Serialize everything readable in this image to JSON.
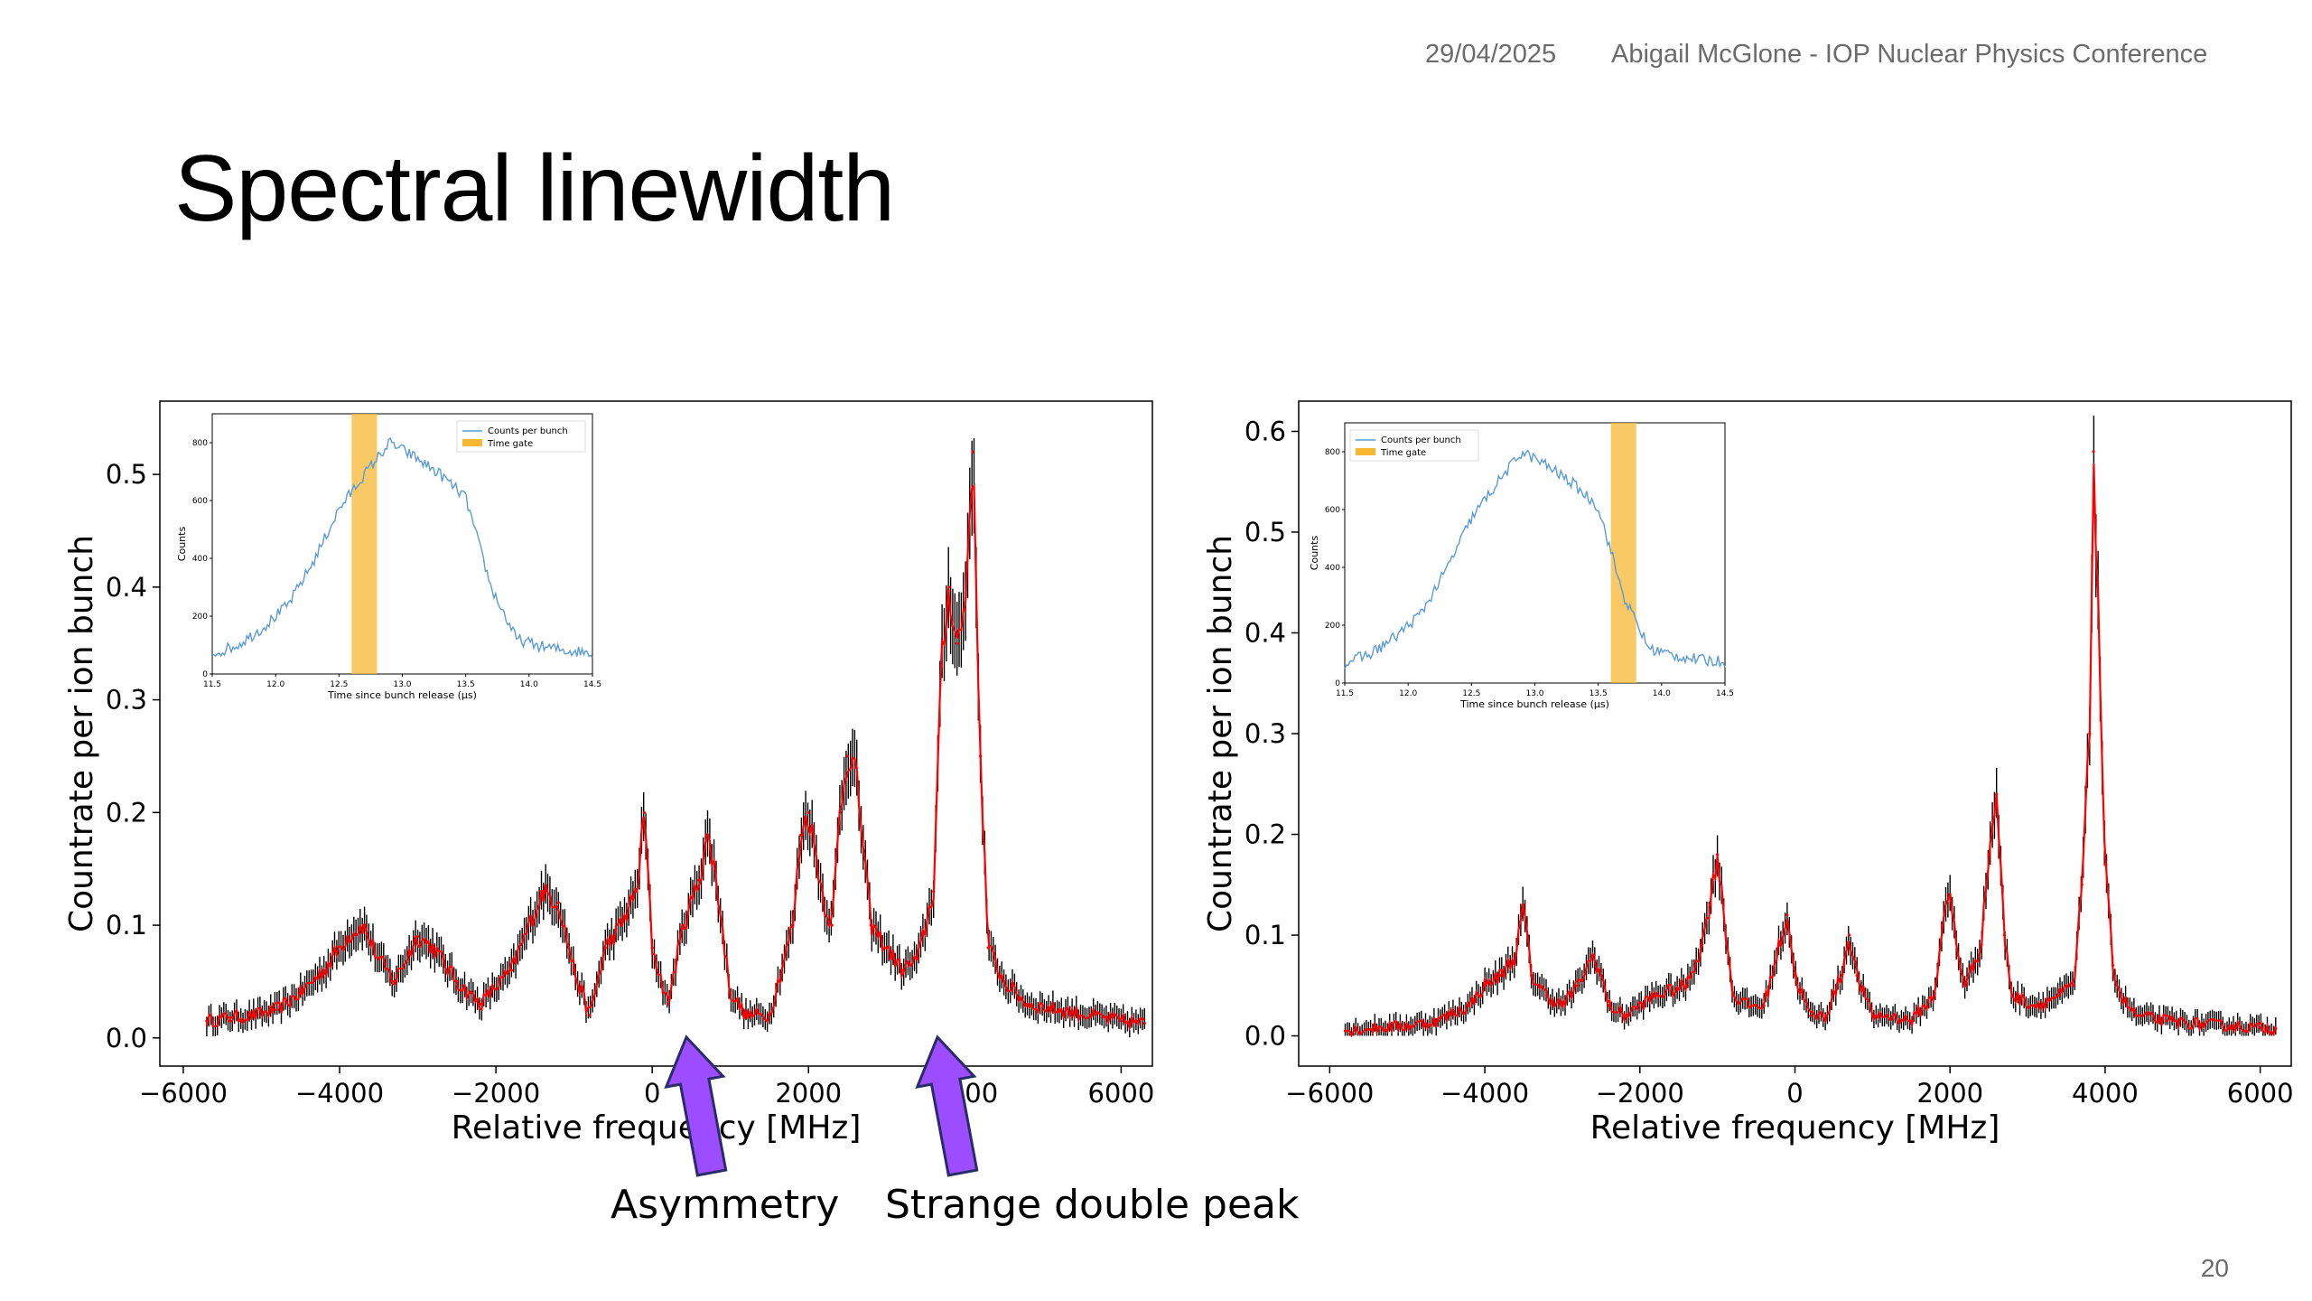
{
  "header": {
    "date": "29/04/2025",
    "author_event": "Abigail McGlone - IOP Nuclear Physics Conference"
  },
  "slide": {
    "title": "Spectral linewidth",
    "page_number": "20"
  },
  "annotations": {
    "asymmetry": "Asymmetry",
    "double_peak": "Strange double peak"
  },
  "colors": {
    "data_line": "#ff0000",
    "error_bars": "#000000",
    "inset_line": "#5b9bd5",
    "time_gate": "#f7b731",
    "arrow": "#9b4dff"
  },
  "chart_data": [
    {
      "type": "line",
      "xlabel": "Relative frequency [MHz]",
      "ylabel": "Countrate per ion bunch",
      "xlim": [
        -6300,
        6400
      ],
      "ylim": [
        -0.025,
        0.565
      ],
      "xticks": [
        -6000,
        -4000,
        -2000,
        0,
        2000,
        4000,
        6000
      ],
      "xtick_labels": [
        "−6000",
        "−4000",
        "−2000",
        "0",
        "2000",
        "4000",
        "6000"
      ],
      "yticks": [
        0.0,
        0.1,
        0.2,
        0.3,
        0.4,
        0.5
      ],
      "ytick_labels": [
        "0.0",
        "0.1",
        "0.2",
        "0.3",
        "0.4",
        "0.5"
      ],
      "series": [
        {
          "x": [
            -5700,
            -5400,
            -5100,
            -4800,
            -4500,
            -4200,
            -3900,
            -3700,
            -3500,
            -3300,
            -3000,
            -2800,
            -2500,
            -2200,
            -1800,
            -1400,
            -1200,
            -1000,
            -800,
            -600,
            -400,
            -200,
            -100,
            0,
            200,
            400,
            600,
            700,
            800,
            1000,
            1200,
            1500,
            1800,
            1900,
            2000,
            2200,
            2300,
            2400,
            2500,
            2600,
            2800,
            3000,
            3200,
            3400,
            3600,
            3700,
            3800,
            3900,
            4000,
            4100,
            4200,
            4300,
            4500,
            4800,
            5200,
            5600,
            6000,
            6300
          ],
          "y": [
            0.015,
            0.018,
            0.02,
            0.025,
            0.04,
            0.06,
            0.09,
            0.1,
            0.07,
            0.05,
            0.09,
            0.08,
            0.05,
            0.03,
            0.06,
            0.13,
            0.12,
            0.06,
            0.02,
            0.08,
            0.1,
            0.13,
            0.2,
            0.08,
            0.03,
            0.1,
            0.14,
            0.18,
            0.15,
            0.04,
            0.02,
            0.02,
            0.1,
            0.18,
            0.2,
            0.12,
            0.1,
            0.2,
            0.25,
            0.24,
            0.1,
            0.08,
            0.06,
            0.07,
            0.13,
            0.33,
            0.4,
            0.35,
            0.38,
            0.52,
            0.25,
            0.08,
            0.05,
            0.03,
            0.025,
            0.02,
            0.015,
            0.013
          ]
        }
      ],
      "inset": {
        "xlabel": "Time since bunch release (μs)",
        "ylabel": "Counts",
        "xticks": [
          11.5,
          12.0,
          12.5,
          13.0,
          13.5,
          14.0,
          14.5
        ],
        "xtick_labels": [
          "11.5",
          "12.0",
          "12.5",
          "13.0",
          "13.5",
          "14.0",
          "14.5"
        ],
        "yticks": [
          0,
          200,
          400,
          600,
          800
        ],
        "ytick_labels": [
          "0",
          "200",
          "400",
          "600",
          "800"
        ],
        "xlim": [
          11.5,
          14.5
        ],
        "ylim": [
          0,
          900
        ],
        "legend": [
          "Counts per bunch",
          "Time gate"
        ],
        "gate": [
          12.6,
          12.8
        ],
        "x": [
          11.5,
          11.7,
          11.9,
          12.1,
          12.3,
          12.5,
          12.7,
          12.9,
          13.1,
          13.3,
          13.5,
          13.7,
          13.9,
          14.1,
          14.3,
          14.5
        ],
        "y": [
          70,
          100,
          160,
          240,
          390,
          570,
          690,
          800,
          750,
          690,
          610,
          300,
          120,
          95,
          80,
          75
        ]
      }
    },
    {
      "type": "line",
      "xlabel": "Relative frequency [MHz]",
      "ylabel": "Countrate per ion bunch",
      "xlim": [
        -6400,
        6400
      ],
      "ylim": [
        -0.03,
        0.63
      ],
      "xticks": [
        -6000,
        -4000,
        -2000,
        0,
        2000,
        4000,
        6000
      ],
      "xtick_labels": [
        "−6000",
        "−4000",
        "−2000",
        "0",
        "2000",
        "4000",
        "6000"
      ],
      "yticks": [
        0.0,
        0.1,
        0.2,
        0.3,
        0.4,
        0.5,
        0.6
      ],
      "ytick_labels": [
        "0.0",
        "0.1",
        "0.2",
        "0.3",
        "0.4",
        "0.5",
        "0.6"
      ],
      "series": [
        {
          "x": [
            -5800,
            -5400,
            -5000,
            -4600,
            -4200,
            -4000,
            -3800,
            -3600,
            -3500,
            -3400,
            -3200,
            -3000,
            -2800,
            -2600,
            -2500,
            -2400,
            -2200,
            -1800,
            -1400,
            -1200,
            -1100,
            -1000,
            -800,
            -600,
            -400,
            -200,
            -100,
            0,
            200,
            400,
            600,
            700,
            800,
            1000,
            1200,
            1500,
            1800,
            1900,
            2000,
            2100,
            2200,
            2400,
            2500,
            2600,
            2700,
            2800,
            3100,
            3400,
            3600,
            3700,
            3800,
            3850,
            3900,
            4000,
            4100,
            4200,
            4400,
            4800,
            5200,
            5600,
            6000,
            6200
          ],
          "y": [
            0.005,
            0.008,
            0.01,
            0.015,
            0.03,
            0.05,
            0.06,
            0.08,
            0.13,
            0.06,
            0.04,
            0.03,
            0.05,
            0.08,
            0.06,
            0.03,
            0.02,
            0.04,
            0.05,
            0.09,
            0.13,
            0.18,
            0.04,
            0.03,
            0.03,
            0.09,
            0.12,
            0.06,
            0.02,
            0.02,
            0.06,
            0.1,
            0.06,
            0.02,
            0.02,
            0.015,
            0.04,
            0.11,
            0.14,
            0.08,
            0.05,
            0.09,
            0.18,
            0.24,
            0.1,
            0.04,
            0.03,
            0.04,
            0.05,
            0.15,
            0.3,
            0.58,
            0.45,
            0.17,
            0.07,
            0.04,
            0.02,
            0.015,
            0.012,
            0.01,
            0.008,
            0.007
          ]
        }
      ],
      "inset": {
        "xlabel": "Time since bunch release (μs)",
        "ylabel": "Counts",
        "xticks": [
          11.5,
          12.0,
          12.5,
          13.0,
          13.5,
          14.0,
          14.5
        ],
        "xtick_labels": [
          "11.5",
          "12.0",
          "12.5",
          "13.0",
          "13.5",
          "14.0",
          "14.5"
        ],
        "yticks": [
          0,
          200,
          400,
          600,
          800
        ],
        "ytick_labels": [
          "0",
          "200",
          "400",
          "600",
          "800"
        ],
        "xlim": [
          11.5,
          14.5
        ],
        "ylim": [
          0,
          900
        ],
        "legend": [
          "Counts per bunch",
          "Time gate"
        ],
        "gate": [
          13.6,
          13.8
        ],
        "x": [
          11.5,
          11.7,
          11.9,
          12.1,
          12.3,
          12.5,
          12.7,
          12.9,
          13.1,
          13.3,
          13.5,
          13.7,
          13.9,
          14.1,
          14.3,
          14.5
        ],
        "y": [
          70,
          100,
          160,
          240,
          390,
          570,
          690,
          800,
          750,
          690,
          610,
          300,
          120,
          95,
          80,
          75
        ]
      }
    }
  ]
}
